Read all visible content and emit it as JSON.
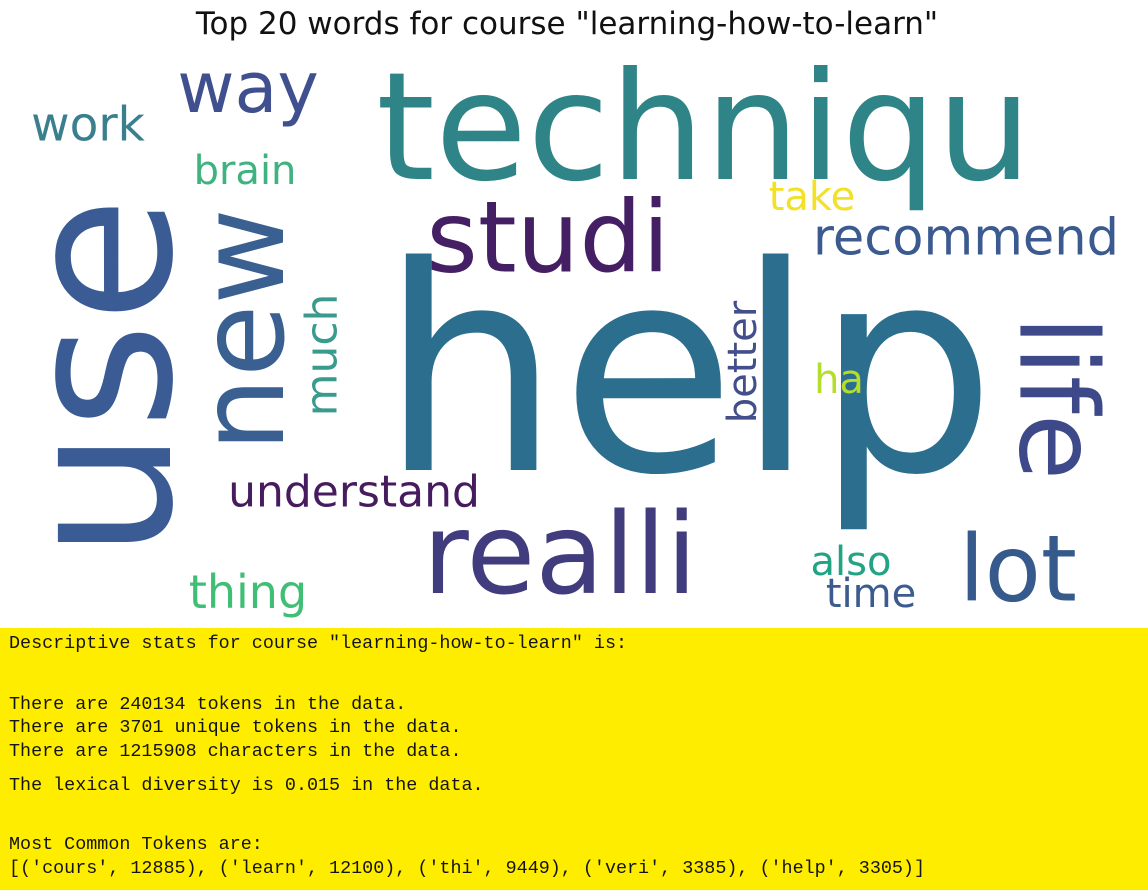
{
  "chart_data": {
    "type": "wordcloud",
    "title": "Top 20 words for course \"learning-how-to-learn\"",
    "words": [
      {
        "text": "help",
        "color": "#2b6e8e",
        "rotated": false
      },
      {
        "text": "use",
        "color": "#3b5b94",
        "rotated": true
      },
      {
        "text": "techniqu",
        "color": "#2f8488",
        "rotated": false
      },
      {
        "text": "realli",
        "color": "#413c7d",
        "rotated": false
      },
      {
        "text": "new",
        "color": "#3a5f91",
        "rotated": true
      },
      {
        "text": "studi",
        "color": "#451f63",
        "rotated": false
      },
      {
        "text": "lot",
        "color": "#375a8c",
        "rotated": false
      },
      {
        "text": "life",
        "color": "#3e4989",
        "rotated": true
      },
      {
        "text": "way",
        "color": "#40508f",
        "rotated": false
      },
      {
        "text": "recommend",
        "color": "#3b5a8f",
        "rotated": false
      },
      {
        "text": "understand",
        "color": "#461c5e",
        "rotated": false
      },
      {
        "text": "much",
        "color": "#399a8e",
        "rotated": true
      },
      {
        "text": "work",
        "color": "#3a7f8e",
        "rotated": false
      },
      {
        "text": "thing",
        "color": "#41be76",
        "rotated": false
      },
      {
        "text": "brain",
        "color": "#3eb27f",
        "rotated": false
      },
      {
        "text": "take",
        "color": "#f3e128",
        "rotated": false
      },
      {
        "text": "better",
        "color": "#434f8b",
        "rotated": true
      },
      {
        "text": "ha",
        "color": "#b5dd2b",
        "rotated": false
      },
      {
        "text": "also",
        "color": "#22a384",
        "rotated": false
      },
      {
        "text": "time",
        "color": "#3c5b8e",
        "rotated": false
      }
    ]
  },
  "stats": {
    "lines": [
      "Descriptive stats for course \"learning-how-to-learn\" is:",
      "There are 240134 tokens in the data.",
      "There are 3701 unique tokens in the data.",
      "There are 1215908 characters in the data.",
      "The lexical diversity is 0.015 in the data.",
      "Most Common Tokens are:",
      "[('cours', 12885), ('learn', 12100), ('thi', 9449), ('veri', 3385), ('help', 3305)]"
    ],
    "background": "#ffed00"
  }
}
